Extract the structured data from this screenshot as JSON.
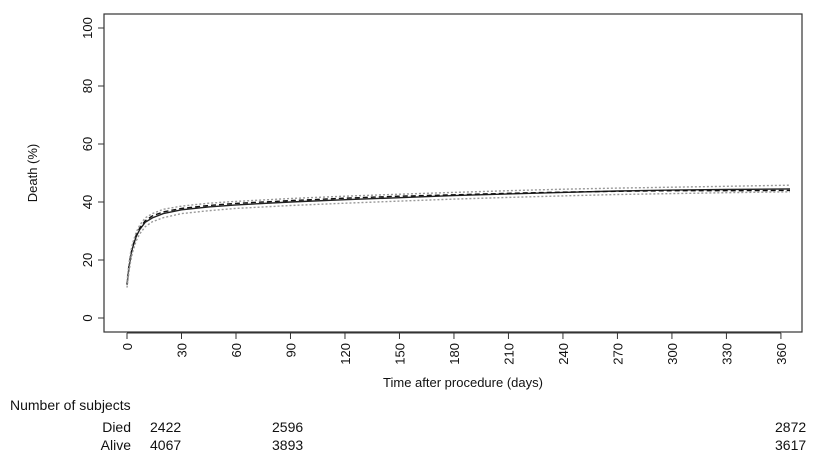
{
  "chart_data": {
    "type": "line",
    "xlabel": "Time after procedure (days)",
    "ylabel": "Death (%)",
    "xlim": [
      0,
      365
    ],
    "ylim": [
      0,
      100
    ],
    "x_ticks": [
      0,
      30,
      60,
      90,
      120,
      150,
      180,
      210,
      240,
      270,
      300,
      330,
      360
    ],
    "y_ticks": [
      0,
      20,
      40,
      60,
      80,
      100
    ],
    "grid": false,
    "series": [
      {
        "style": "solid",
        "color": "#222222",
        "x": [
          0,
          1,
          2,
          3,
          5,
          7,
          10,
          14,
          20,
          30,
          45,
          60,
          90,
          120,
          150,
          180,
          210,
          240,
          270,
          300,
          330,
          365
        ],
        "y": [
          11.5,
          17,
          21,
          24,
          28,
          30.5,
          33,
          34.5,
          36,
          37.3,
          38.3,
          39,
          40,
          40.8,
          41.5,
          42.2,
          42.8,
          43.3,
          43.8,
          44.1,
          44.3,
          44.5
        ]
      },
      {
        "style": "dashed",
        "color": "#111111",
        "x": [
          0,
          1,
          2,
          3,
          5,
          7,
          10,
          14,
          20,
          30,
          45,
          60,
          90,
          120,
          150,
          180,
          210,
          240,
          270,
          300,
          330,
          365
        ],
        "y": [
          11.5,
          17.5,
          21.5,
          24.5,
          28.5,
          31,
          33.5,
          35.2,
          36.6,
          37.8,
          38.8,
          39.5,
          40.5,
          41.3,
          42,
          42.5,
          43,
          43.4,
          43.7,
          43.9,
          43.9,
          44
        ]
      },
      {
        "style": "dotted",
        "color": "#999999",
        "x": [
          0,
          1,
          2,
          3,
          5,
          7,
          10,
          14,
          20,
          30,
          45,
          60,
          90,
          120,
          150,
          180,
          210,
          240,
          270,
          300,
          330,
          365
        ],
        "y": [
          12.5,
          18.5,
          22.5,
          25.5,
          29.5,
          32,
          34.5,
          36,
          37.5,
          38.6,
          39.6,
          40.2,
          41.2,
          42,
          42.7,
          43.3,
          43.9,
          44.4,
          44.8,
          45.1,
          45.4,
          45.8
        ]
      },
      {
        "style": "dotted",
        "color": "#999999",
        "x": [
          0,
          1,
          2,
          3,
          5,
          7,
          10,
          14,
          20,
          30,
          45,
          60,
          90,
          120,
          150,
          180,
          210,
          240,
          270,
          300,
          330,
          365
        ],
        "y": [
          10.5,
          15.5,
          19.5,
          22.5,
          26.5,
          29,
          31.5,
          33.2,
          34.6,
          36,
          37,
          37.8,
          38.8,
          39.6,
          40.3,
          41,
          41.6,
          42.1,
          42.6,
          42.9,
          43.2,
          43.5
        ]
      }
    ]
  },
  "risk_table": {
    "title": "Number of subjects",
    "rows": [
      {
        "label": "Died",
        "values": [
          "2422",
          "2596",
          "2872"
        ]
      },
      {
        "label": "Alive",
        "values": [
          "4067",
          "3893",
          "3617"
        ]
      }
    ]
  }
}
